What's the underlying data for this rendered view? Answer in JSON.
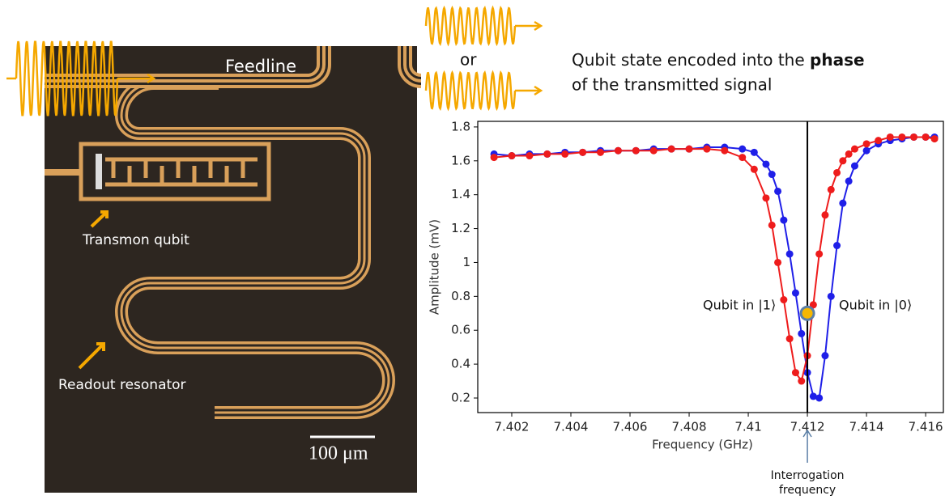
{
  "header": {
    "or": "or",
    "caption_before": "Qubit state encoded into the",
    "caption_bold": "phase",
    "caption_after": "of the transmitted signal"
  },
  "micrograph": {
    "feedline": "Feedline",
    "qubit": "Transmon qubit",
    "resonator": "Readout resonator",
    "scale_bar": "100 μm"
  },
  "chart_data": {
    "type": "line",
    "x_label": "Frequency (GHz)",
    "y_label": "Amplitude (mV)",
    "x": [
      7.4014,
      7.402,
      7.4026,
      7.4032,
      7.4038,
      7.4044,
      7.405,
      7.4056,
      7.4062,
      7.4068,
      7.4074,
      7.408,
      7.4086,
      7.4092,
      7.4098,
      7.4102,
      7.4106,
      7.4108,
      7.411,
      7.4112,
      7.4114,
      7.4116,
      7.4118,
      7.412,
      7.4122,
      7.4124,
      7.4126,
      7.4128,
      7.413,
      7.4132,
      7.4134,
      7.4136,
      7.414,
      7.4144,
      7.4148,
      7.4152,
      7.4156,
      7.416,
      7.4163
    ],
    "series": [
      {
        "name": "Qubit in |0⟩",
        "color": "#1f1fe8",
        "values": [
          1.64,
          1.63,
          1.64,
          1.64,
          1.65,
          1.65,
          1.66,
          1.66,
          1.66,
          1.67,
          1.67,
          1.67,
          1.68,
          1.68,
          1.67,
          1.65,
          1.58,
          1.52,
          1.42,
          1.25,
          1.05,
          0.82,
          0.58,
          0.35,
          0.21,
          0.2,
          0.45,
          0.8,
          1.1,
          1.35,
          1.48,
          1.57,
          1.66,
          1.7,
          1.72,
          1.73,
          1.74,
          1.74,
          1.74
        ]
      },
      {
        "name": "Qubit in |1⟩",
        "color": "#ee1c1c",
        "values": [
          1.62,
          1.63,
          1.63,
          1.64,
          1.64,
          1.65,
          1.65,
          1.66,
          1.66,
          1.66,
          1.67,
          1.67,
          1.67,
          1.66,
          1.62,
          1.55,
          1.38,
          1.22,
          1.0,
          0.78,
          0.55,
          0.35,
          0.3,
          0.45,
          0.75,
          1.05,
          1.28,
          1.43,
          1.53,
          1.6,
          1.64,
          1.67,
          1.7,
          1.72,
          1.74,
          1.74,
          1.74,
          1.74,
          1.73
        ]
      }
    ],
    "xlim": [
      7.40085,
      7.4166
    ],
    "ylim": [
      0.114,
      1.833
    ],
    "xticks": [
      7.402,
      7.404,
      7.406,
      7.408,
      7.41,
      7.412,
      7.414,
      7.416
    ],
    "yticks": [
      0.2,
      0.4,
      0.6,
      0.8,
      1,
      1.2,
      1.4,
      1.6,
      1.8
    ],
    "vline": 7.412,
    "marker": {
      "x": 7.412,
      "y": 0.7,
      "color": "#f5b700"
    },
    "annotation_left": "Qubit in |1⟩",
    "annotation_right": "Qubit in |0⟩",
    "interrogation": [
      "Interrogation",
      "frequency"
    ]
  }
}
